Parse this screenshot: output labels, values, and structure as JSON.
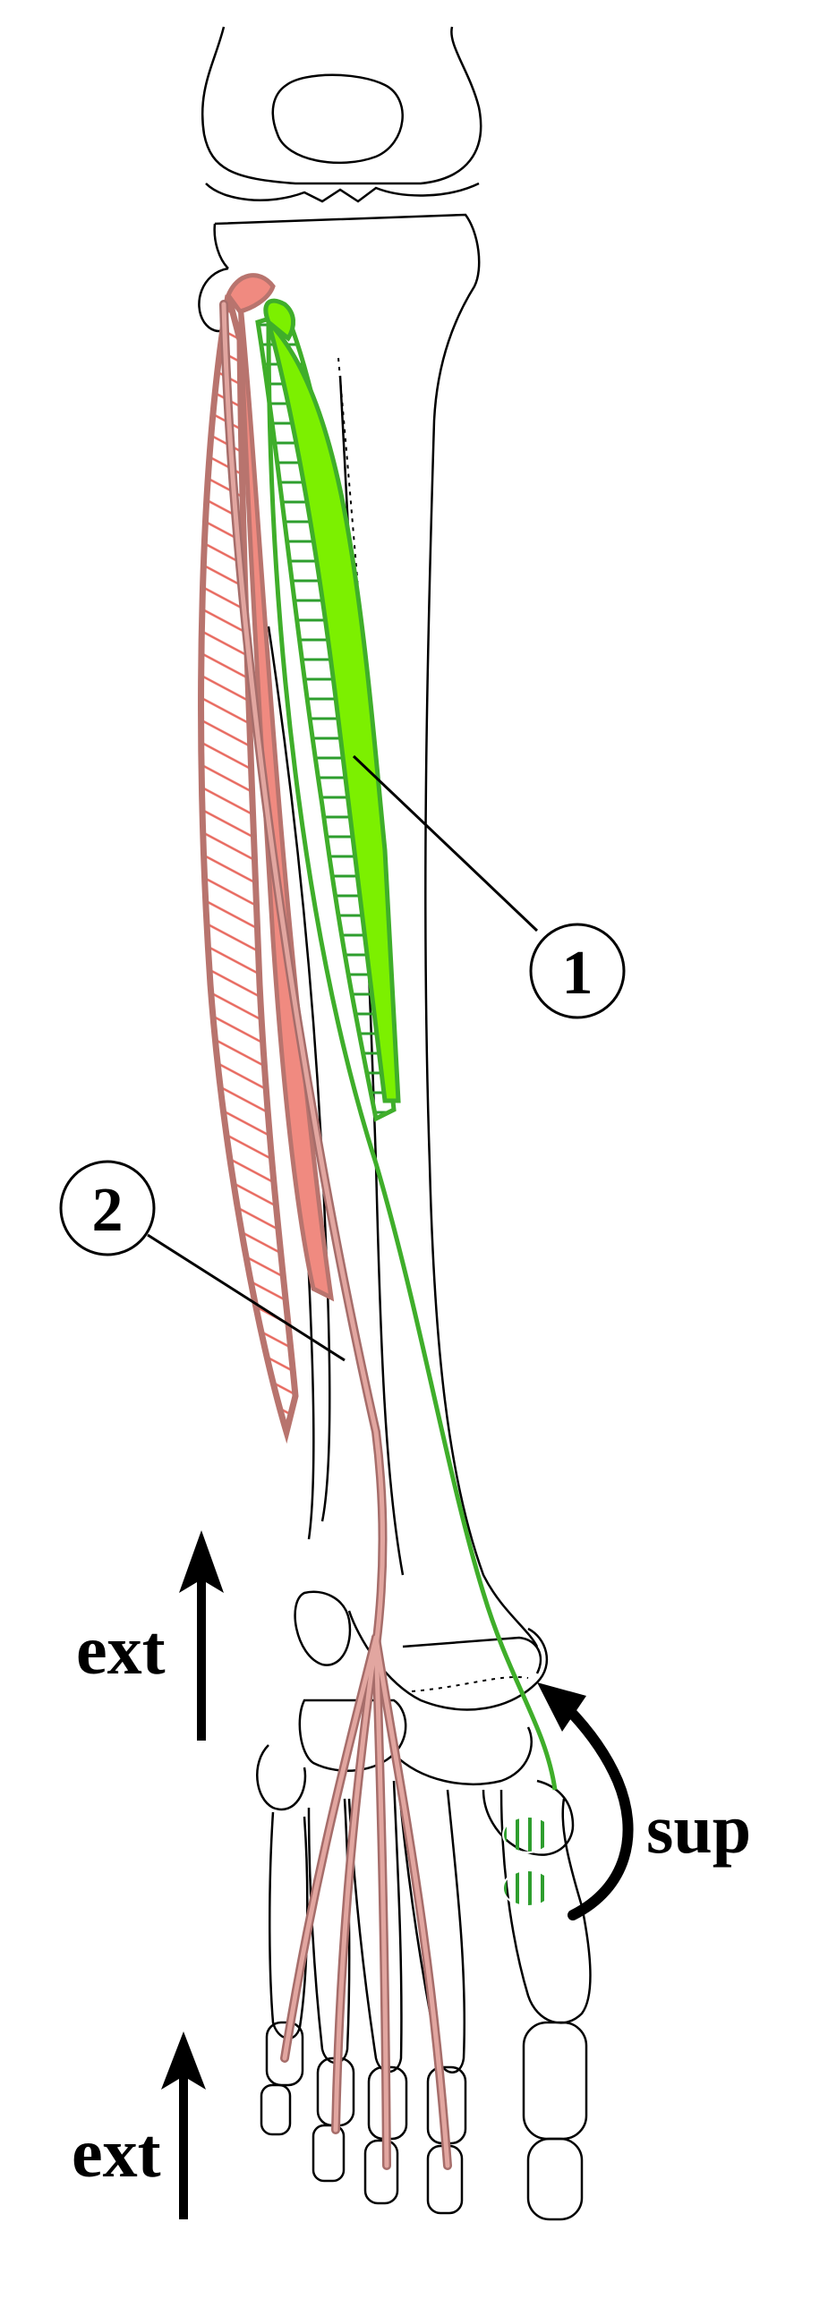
{
  "labels": {
    "marker_1": "1",
    "marker_2": "2",
    "movement_ext_upper": "ext",
    "movement_ext_lower": "ext",
    "movement_sup": "sup"
  },
  "colors": {
    "bone_outline": "#000000",
    "muscle_green": "#7cf000",
    "muscle_green_stroke": "#3fae2a",
    "hatch_green": "#2e9e2e",
    "muscle_red": "#f08a80",
    "muscle_red_stroke": "#b8746e",
    "hatch_red": "#e86a60",
    "tendon_red": "#e2a6a0",
    "tendon_red_stroke": "#a66d6a",
    "arrow": "#000000"
  }
}
